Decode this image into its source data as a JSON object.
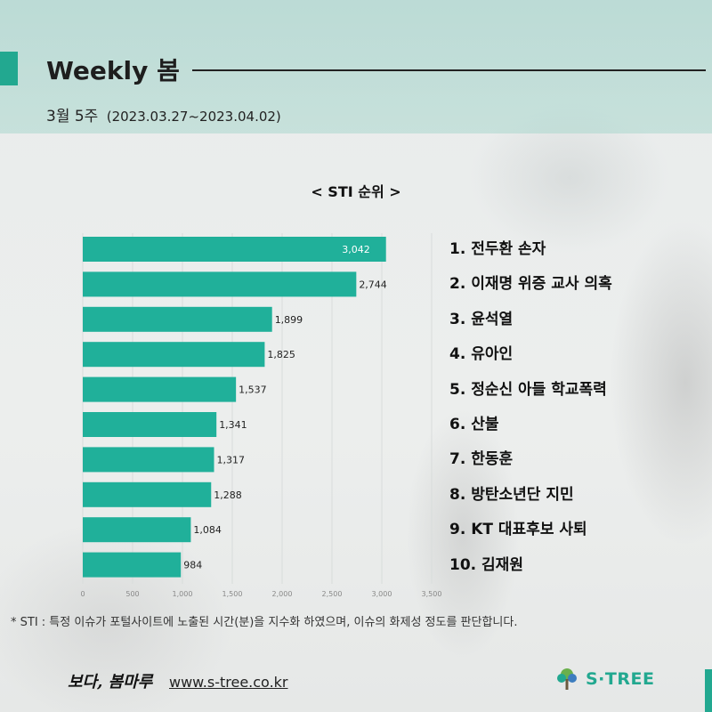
{
  "header": {
    "title": "Weekly 봄",
    "week": "3월 5주",
    "range": "(2023.03.27~2023.04.02)"
  },
  "chart_title": "< STI 순위 >",
  "chart_data": {
    "type": "bar",
    "orientation": "horizontal",
    "categories": [
      "1",
      "2",
      "3",
      "4",
      "5",
      "6",
      "7",
      "8",
      "9",
      "10"
    ],
    "values": [
      3042,
      2744,
      1899,
      1825,
      1537,
      1341,
      1317,
      1288,
      1084,
      984
    ],
    "value_labels": [
      "3,042",
      "2,744",
      "1,899",
      "1,825",
      "1,537",
      "1,341",
      "1,317",
      "1,288",
      "1,084",
      "984"
    ],
    "xlim": [
      0,
      3500
    ],
    "x_ticks": [
      0,
      500,
      1000,
      1500,
      2000,
      2500,
      3000,
      3500
    ],
    "x_tick_labels": [
      "0",
      "500",
      "1,000",
      "1,500",
      "2,000",
      "2,500",
      "3,000",
      "3,500"
    ],
    "grid": true,
    "bar_color": "#20b09a"
  },
  "ranking": [
    "1. 전두환 손자",
    "2. 이재명 위증 교사 의혹",
    "3. 윤석열",
    "4. 유아인",
    "5. 정순신 아들 학교폭력",
    "6. 산불",
    "7. 한동훈",
    "8. 방탄소년단 지민",
    "9. KT 대표후보 사퇴",
    "10. 김재원"
  ],
  "footnote": "* STI : 특정 이슈가 포털사이트에 노출된 시간(분)을 지수화 하였으며, 이슈의 화제성 정도를 판단합니다.",
  "footer": {
    "brand": "보다, 봄마루",
    "website": "www.s-tree.co.kr",
    "logo_text": "S·TREE",
    "logo_icon": "tree-icon",
    "accent_color": "#22a890"
  }
}
